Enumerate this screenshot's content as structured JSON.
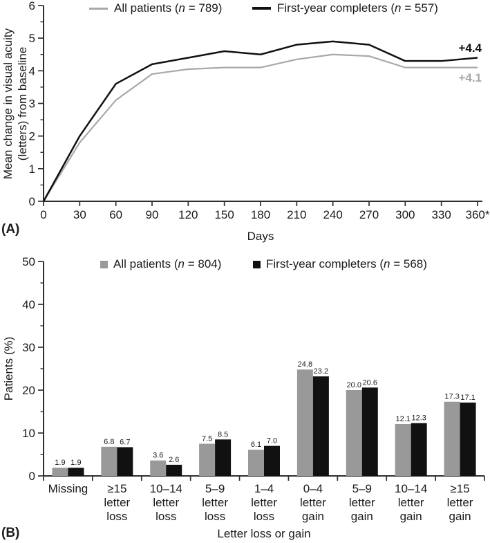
{
  "panelA": {
    "panel_label": "(A)",
    "ylabel_line1": "Mean change in visual acuity",
    "ylabel_line2": "(letters) from baseline",
    "xlabel": "Days",
    "legend": {
      "all_patients": {
        "pre": "All patients (",
        "n": "n",
        "post": " = 789)"
      },
      "completers": {
        "pre": "First-year completers (",
        "n": "n",
        "post": " = 557)"
      }
    },
    "end_label_completers": "+4.4",
    "end_label_all": "+4.1"
  },
  "panelB": {
    "panel_label": "(B)",
    "ylabel": "Patients (%)",
    "xlabel": "Letter loss or gain",
    "legend": {
      "all_patients": {
        "pre": "All patients (",
        "n": "n",
        "post": " = 804)"
      },
      "completers": {
        "pre": "First-year completers (",
        "n": "n",
        "post": " = 568)"
      }
    }
  },
  "colors": {
    "gray_line": "#a8a8a8",
    "gray_bar": "#999999",
    "black": "#111111",
    "axis": "#2e2e2e"
  },
  "chart_data": [
    {
      "type": "line",
      "title": "",
      "xlabel": "Days",
      "ylabel": "Mean change in visual acuity (letters) from baseline",
      "x": [
        0,
        30,
        60,
        90,
        120,
        150,
        180,
        210,
        240,
        270,
        300,
        330,
        360
      ],
      "xticklabels": [
        "0",
        "30",
        "60",
        "90",
        "120",
        "150",
        "180",
        "210",
        "240",
        "270",
        "300",
        "330",
        "360*"
      ],
      "ylim": [
        0,
        6
      ],
      "yticks": [
        0,
        1,
        2,
        3,
        4,
        5,
        6
      ],
      "grid": false,
      "legend_position": "top",
      "series": [
        {
          "name": "All patients (n = 789)",
          "color": "#a8a8a8",
          "stroke_width": 2.2,
          "values": [
            0,
            1.8,
            3.1,
            3.9,
            4.05,
            4.1,
            4.1,
            4.35,
            4.5,
            4.45,
            4.1,
            4.1,
            4.1
          ],
          "end_label": "+4.1"
        },
        {
          "name": "First-year completers (n = 557)",
          "color": "#111111",
          "stroke_width": 2.5,
          "values": [
            0,
            2.0,
            3.6,
            4.2,
            4.4,
            4.6,
            4.5,
            4.8,
            4.9,
            4.8,
            4.3,
            4.3,
            4.4
          ],
          "end_label": "+4.4"
        }
      ]
    },
    {
      "type": "bar",
      "title": "",
      "xlabel": "Letter loss or gain",
      "ylabel": "Patients (%)",
      "categories": [
        "Missing",
        "≥15 letter loss",
        "10–14 letter loss",
        "5–9 letter loss",
        "1–4 letter loss",
        "0–4 letter gain",
        "5–9 letter gain",
        "10–14 letter gain",
        "≥15 letter gain"
      ],
      "ylim": [
        0,
        50
      ],
      "yticks": [
        0,
        10,
        20,
        30,
        40,
        50
      ],
      "grid": false,
      "legend_position": "top",
      "series": [
        {
          "name": "All patients (n = 804)",
          "color": "#999999",
          "values": [
            1.9,
            6.8,
            3.6,
            7.5,
            6.1,
            24.8,
            20.0,
            12.1,
            17.3
          ]
        },
        {
          "name": "First-year completers (n = 568)",
          "color": "#111111",
          "values": [
            1.9,
            6.7,
            2.6,
            8.5,
            7.0,
            23.2,
            20.6,
            12.3,
            17.1
          ]
        }
      ]
    }
  ]
}
